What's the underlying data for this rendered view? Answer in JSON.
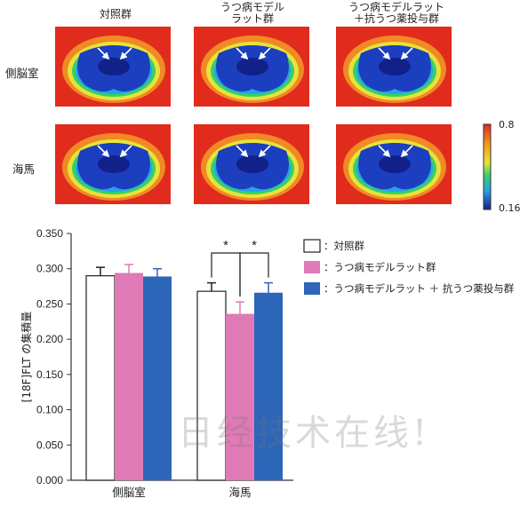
{
  "scans": {
    "column_headers": [
      "対照群",
      "うつ病モデル\nラット群",
      "うつ病モデルラット\n＋抗うつ薬投与群"
    ],
    "row_headers": [
      "側脳室",
      "海馬"
    ],
    "colorbar": {
      "max_label": "0.8",
      "min_label": "0.16"
    }
  },
  "watermark": "日经技术在线!",
  "chart_data": {
    "type": "bar",
    "categories": [
      "側脳室",
      "海馬"
    ],
    "series": [
      {
        "name": "：対照群",
        "values": [
          0.29,
          0.268
        ],
        "errors": [
          0.012,
          0.012
        ],
        "color": "#ffffff"
      },
      {
        "name": "：うつ病モデルラット群",
        "values": [
          0.294,
          0.236
        ],
        "errors": [
          0.012,
          0.017
        ],
        "color": "#e07ab6"
      },
      {
        "name": "：うつ病モデルラット ＋ 抗うつ薬投与群",
        "values": [
          0.289,
          0.266
        ],
        "errors": [
          0.011,
          0.014
        ],
        "color": "#2d66b8"
      }
    ],
    "ylabel": "[18F]FLT の集積量",
    "ylim": [
      0,
      0.35
    ],
    "yticks": [
      "0.000",
      "0.050",
      "0.100",
      "0.150",
      "0.200",
      "0.250",
      "0.300",
      "0.350"
    ],
    "significance": [
      {
        "category": "海馬",
        "pair": [
          "：対照群",
          "：うつ病モデルラット群"
        ],
        "label": "*"
      },
      {
        "category": "海馬",
        "pair": [
          "：うつ病モデルラット群",
          "：うつ病モデルラット ＋ 抗うつ薬投与群"
        ],
        "label": "*"
      }
    ],
    "legend_position": "right"
  }
}
